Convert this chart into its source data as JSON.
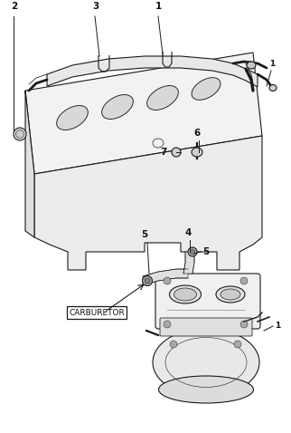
{
  "background_color": "#ffffff",
  "line_color": "#1a1a1a",
  "label_color": "#111111",
  "carburetor_label": "CARBURETOR",
  "fig_width": 3.22,
  "fig_height": 4.78,
  "dpi": 100
}
